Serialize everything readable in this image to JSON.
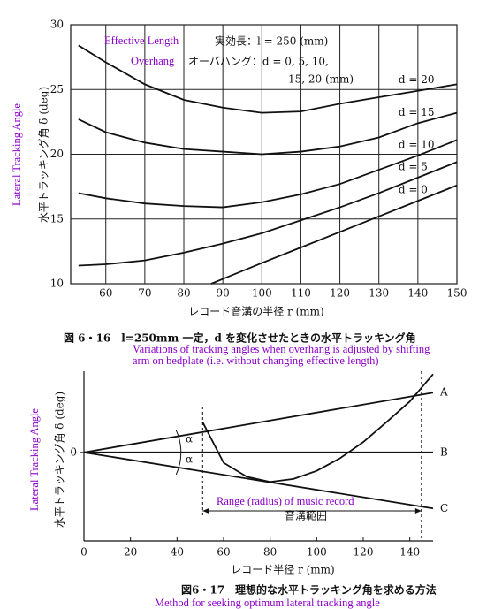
{
  "chart_data": [
    {
      "type": "line",
      "annotations": [
        "Effective Length",
        "実効長：l = 250 (mm)",
        "Overhang",
        "オーバハング：d = 0, 5, 10,",
        "15, 20 (mm)"
      ],
      "y_label": "水平トラッキング角 δ (deg)",
      "y_label_english": "Lateral Tracking Angle",
      "x_label": "レコード音溝の半径 r (mm)",
      "caption": "図 6・16　l=250mm 一定，d を変化させたときの水平トラッキング角",
      "caption_english": [
        "Variations of tracking angles when overhang is adjusted by shifting",
        "arm on bedplate (i.e. without changing effective length)"
      ],
      "xlim": [
        51,
        150
      ],
      "xticks": [
        60,
        70,
        80,
        90,
        100,
        110,
        120,
        130,
        140,
        150
      ],
      "ylim": [
        10,
        30
      ],
      "yticks": [
        10,
        15,
        20,
        25,
        30
      ],
      "grid": true,
      "series": [
        {
          "name": "d = 20",
          "color": "#111",
          "x": [
            53,
            60,
            70,
            80,
            90,
            100,
            110,
            120,
            130,
            140,
            150
          ],
          "values": [
            28.4,
            27.1,
            25.4,
            24.2,
            23.6,
            23.2,
            23.3,
            23.9,
            24.4,
            24.9,
            25.4
          ]
        },
        {
          "name": "d = 15",
          "color": "#111",
          "x": [
            53,
            60,
            70,
            80,
            90,
            100,
            110,
            120,
            130,
            140,
            150
          ],
          "values": [
            22.7,
            21.7,
            20.9,
            20.4,
            20.2,
            20.0,
            20.2,
            20.6,
            21.3,
            22.4,
            23.2
          ]
        },
        {
          "name": "d = 10",
          "color": "#111",
          "x": [
            53,
            60,
            70,
            80,
            90,
            100,
            110,
            120,
            130,
            140,
            150
          ],
          "values": [
            17.0,
            16.6,
            16.2,
            16.0,
            15.9,
            16.3,
            16.9,
            17.7,
            18.8,
            19.9,
            21.1
          ]
        },
        {
          "name": "d = 5",
          "color": "#111",
          "x": [
            53,
            60,
            70,
            80,
            90,
            100,
            110,
            120,
            130,
            140,
            150
          ],
          "values": [
            11.4,
            11.5,
            11.8,
            12.4,
            13.1,
            13.9,
            14.9,
            15.9,
            17.0,
            18.2,
            19.4
          ]
        },
        {
          "name": "d = 0",
          "color": "#111",
          "x": [
            87,
            100,
            110,
            120,
            130,
            140,
            150
          ],
          "values": [
            10.0,
            11.6,
            12.8,
            14.0,
            15.2,
            16.4,
            17.6
          ]
        }
      ]
    },
    {
      "type": "line",
      "annotations": [
        "α",
        "α",
        "Range (radius) of music record",
        "音溝範囲"
      ],
      "range": [
        51,
        145
      ],
      "y_label": "水平トラッキング角 δ (deg)",
      "y_label_english": "Lateral Tracking Angle",
      "x_label": "レコード半径 r (mm)",
      "caption": "図6・17　理想的な水平トラッキング角を求める方法",
      "caption_english": [
        "Method for seeking optimum lateral tracking angle"
      ],
      "xlim": [
        0,
        150
      ],
      "xticks": [
        0,
        20,
        40,
        60,
        80,
        100,
        120,
        140
      ],
      "ylim": [
        -12,
        11
      ],
      "yticks": [
        0
      ],
      "grid": false,
      "series": [
        {
          "name": "A",
          "color": "#111",
          "x": [
            0,
            150
          ],
          "values": [
            0,
            8.1
          ]
        },
        {
          "name": "B",
          "color": "#111",
          "x": [
            0,
            150
          ],
          "values": [
            0,
            0
          ]
        },
        {
          "name": "C",
          "color": "#111",
          "x": [
            0,
            150
          ],
          "values": [
            0,
            -7.6
          ]
        },
        {
          "color": "#111",
          "x": [
            51,
            60,
            70,
            80,
            90,
            100,
            110,
            120,
            130,
            140,
            150
          ],
          "values": [
            4.1,
            -1.4,
            -3.3,
            -4.0,
            -3.6,
            -2.5,
            -0.8,
            1.4,
            4.1,
            6.9,
            10.6
          ]
        }
      ]
    }
  ]
}
